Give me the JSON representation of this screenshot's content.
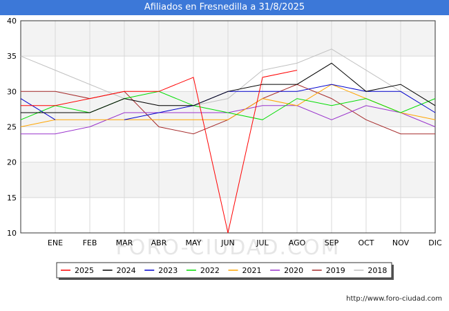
{
  "chart_data": {
    "type": "line",
    "title": "Afiliados en Fresnedilla a 31/8/2025",
    "xlabel": "",
    "ylabel": "",
    "ylim": [
      10,
      40
    ],
    "yticks": [
      10,
      15,
      20,
      25,
      30,
      35,
      40
    ],
    "categories": [
      "",
      "ENE",
      "FEB",
      "MAR",
      "ABR",
      "MAY",
      "JUN",
      "JUL",
      "AGO",
      "SEP",
      "OCT",
      "NOV",
      "DIC"
    ],
    "series": [
      {
        "name": "2018",
        "color": "#c0c0c0",
        "values": [
          35,
          33,
          31,
          29,
          28,
          28,
          29,
          33,
          34,
          36,
          33,
          30,
          null
        ]
      },
      {
        "name": "2019",
        "color": "#a52a2a",
        "values": [
          30,
          30,
          29,
          30,
          25,
          24,
          26,
          29,
          31,
          29,
          26,
          24,
          24
        ]
      },
      {
        "name": "2020",
        "color": "#9932cc",
        "values": [
          24,
          24,
          25,
          27,
          27,
          27,
          27,
          28,
          28,
          26,
          28,
          27,
          25
        ]
      },
      {
        "name": "2021",
        "color": "#ffa500",
        "values": [
          25,
          26,
          26,
          26,
          26,
          26,
          26,
          29,
          28,
          31,
          29,
          27,
          26
        ]
      },
      {
        "name": "2022",
        "color": "#00dd00",
        "values": [
          26,
          28,
          27,
          29,
          30,
          28,
          27,
          26,
          29,
          28,
          29,
          27,
          29
        ]
      },
      {
        "name": "2023",
        "color": "#0000cd",
        "values": [
          29,
          26,
          null,
          26,
          27,
          28,
          30,
          30,
          30,
          31,
          30,
          30,
          27
        ]
      },
      {
        "name": "2024",
        "color": "#000000",
        "values": [
          27,
          27,
          27,
          29,
          28,
          28,
          30,
          31,
          31,
          34,
          30,
          31,
          28
        ]
      },
      {
        "name": "2025",
        "color": "#ff0000",
        "values": [
          28,
          28,
          29,
          30,
          30,
          32,
          10,
          32,
          33,
          null,
          null,
          null,
          null
        ]
      }
    ],
    "legend_order": [
      "2025",
      "2024",
      "2023",
      "2022",
      "2021",
      "2020",
      "2019",
      "2018"
    ],
    "legend_position": "bottom"
  },
  "footer": {
    "source": "http://www.foro-ciudad.com"
  },
  "watermark": "FORO-CIUDAD.COM"
}
